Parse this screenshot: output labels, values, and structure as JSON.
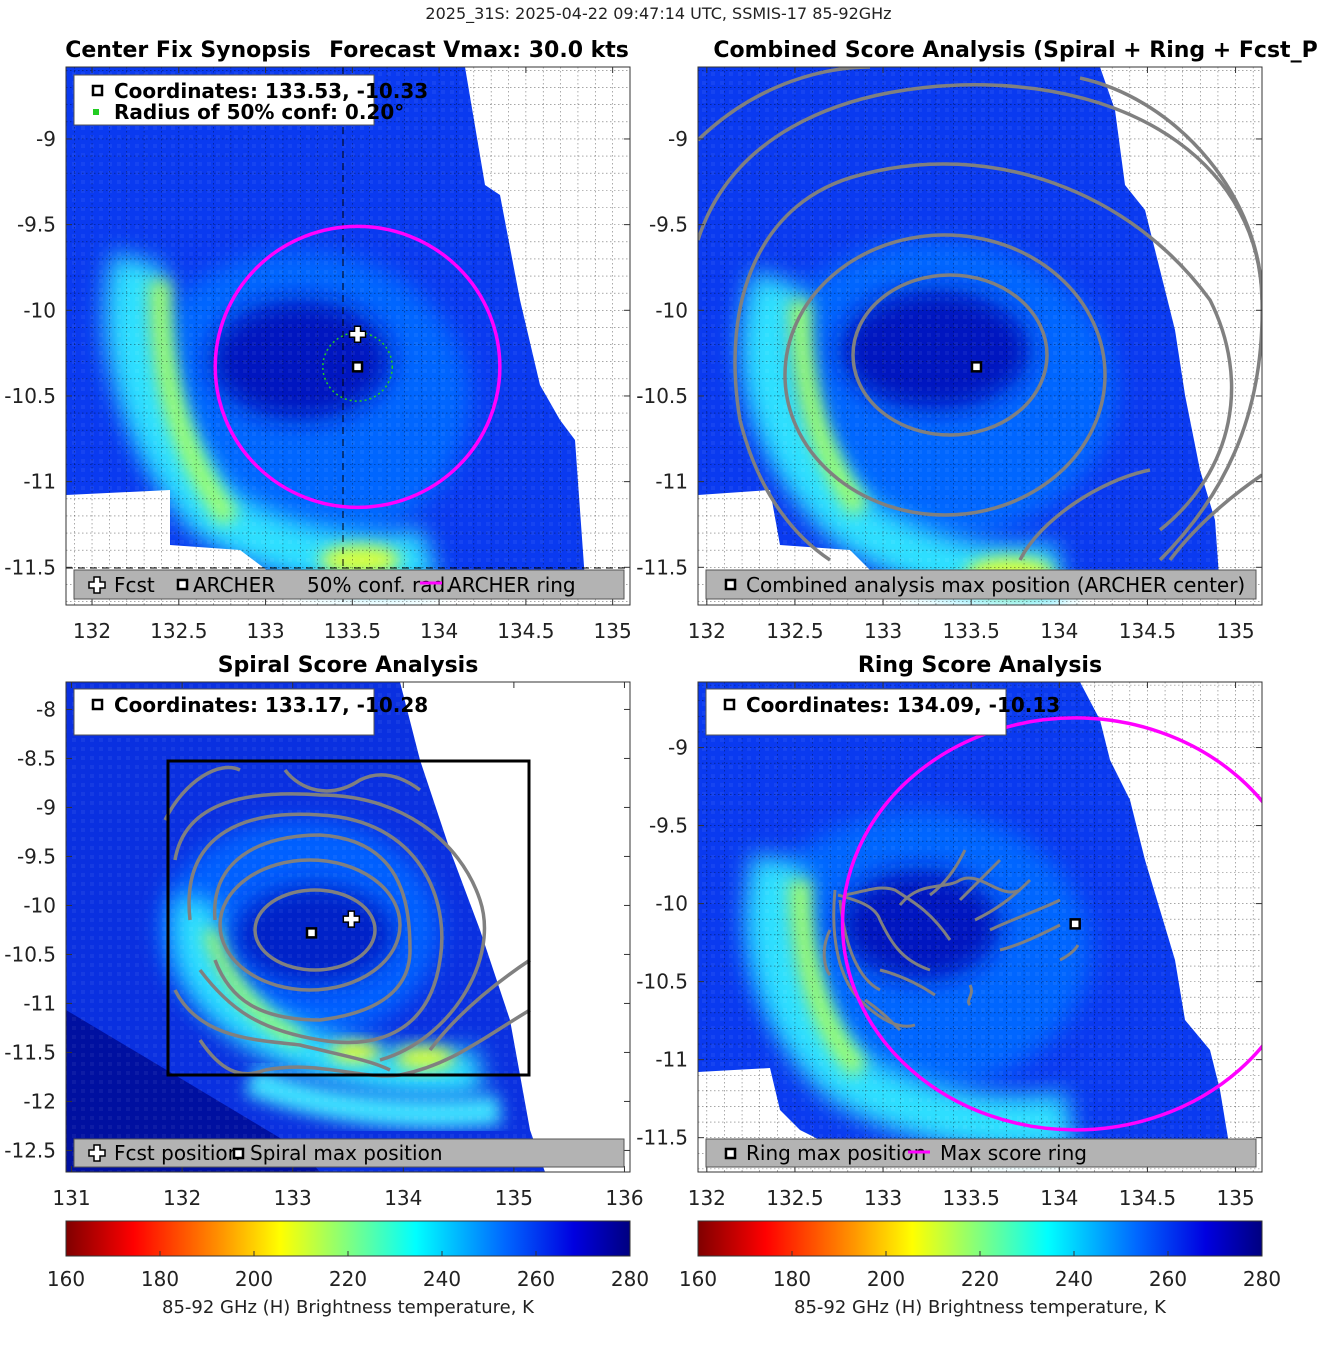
{
  "figure": {
    "suptitle": "2025_31S: 2025-04-22 09:47:14 UTC, SSMIS-17 85-92GHz"
  },
  "colors": {
    "fcst": "#ffffff",
    "archer": "#000000",
    "ring": "#ff00ff",
    "conf": "#22cc22",
    "contour": "#808080",
    "legend_bg": "#b3b3b3"
  },
  "chart_data": [
    {
      "id": "synopsis",
      "type": "heatmap",
      "title_left": "Center Fix Synopsis",
      "title_right": "Forecast Vmax: 30.0 kts",
      "xlim": [
        131.85,
        135.1
      ],
      "ylim": [
        -11.72,
        -8.58
      ],
      "xticks": [
        132,
        132.5,
        133,
        133.5,
        134,
        134.5,
        135
      ],
      "xtick_labels": [
        "132",
        "132.5",
        "133",
        "133.5",
        "134",
        "134.5",
        "135"
      ],
      "yticks": [
        -9,
        -9.5,
        -10,
        -10.5,
        -11,
        -11.5
      ],
      "ytick_labels": [
        "-9",
        "-9.5",
        "-10",
        "-10.5",
        "-11",
        "-11.5"
      ],
      "grid": "dotted",
      "info_lines": [
        "Coordinates: 133.53, -10.33",
        "Radius of 50% conf: 0.20°"
      ],
      "points": [
        {
          "name": "Fcst",
          "x": 133.53,
          "y": -10.14,
          "marker": "cross"
        },
        {
          "name": "ARCHER",
          "x": 133.53,
          "y": -10.33,
          "marker": "square"
        }
      ],
      "conf_circle": {
        "center": [
          133.53,
          -10.33
        ],
        "radius_deg": 0.2
      },
      "ring_circle": {
        "center": [
          133.53,
          -10.33
        ],
        "radius_deg": 0.82
      },
      "legend": [
        "Fcst",
        "ARCHER",
        "50% conf. rad.",
        "ARCHER ring"
      ]
    },
    {
      "id": "combined",
      "type": "heatmap",
      "title": "Combined Score Analysis (Spiral + Ring + Fcst_Pe",
      "xlim": [
        131.95,
        135.15
      ],
      "ylim": [
        -11.72,
        -8.58
      ],
      "xticks": [
        132,
        132.5,
        133,
        133.5,
        134,
        134.5,
        135
      ],
      "xtick_labels": [
        "132",
        "132.5",
        "133",
        "133.5",
        "134",
        "134.5",
        "135"
      ],
      "yticks": [
        -9,
        -9.5,
        -10,
        -10.5,
        -11,
        -11.5
      ],
      "ytick_labels": [
        "-9",
        "-9.5",
        "-10",
        "-10.5",
        "-11",
        "-11.5"
      ],
      "grid": "dotted",
      "points": [
        {
          "name": "Combined analysis max position",
          "x": 133.53,
          "y": -10.33,
          "marker": "square"
        }
      ],
      "legend": [
        "Combined analysis max position (ARCHER center)"
      ]
    },
    {
      "id": "spiral",
      "type": "heatmap",
      "title": "Spiral Score Analysis",
      "xlim": [
        130.95,
        136.05
      ],
      "ylim": [
        -12.72,
        -7.72
      ],
      "xticks": [
        131,
        132,
        133,
        134,
        135,
        136
      ],
      "xtick_labels": [
        "131",
        "132",
        "133",
        "134",
        "135",
        "136"
      ],
      "yticks": [
        -8,
        -8.5,
        -9,
        -9.5,
        -10,
        -10.5,
        -11,
        -11.5,
        -12,
        -12.5
      ],
      "ytick_labels": [
        "-8",
        "-8.5",
        "-9",
        "-9.5",
        "-10",
        "-10.5",
        "-11",
        "-11.5",
        "-12",
        "-12.5"
      ],
      "grid": "none",
      "info_lines": [
        "Coordinates: 133.17, -10.28"
      ],
      "points": [
        {
          "name": "Fcst position",
          "x": 133.53,
          "y": -10.14,
          "marker": "cross"
        },
        {
          "name": "Spiral max position",
          "x": 133.17,
          "y": -10.28,
          "marker": "square"
        }
      ],
      "search_box": {
        "x": [
          131.9,
          135.2
        ],
        "y": [
          -11.72,
          -8.52
        ]
      },
      "legend": [
        "Fcst position",
        "Spiral max position"
      ]
    },
    {
      "id": "ring",
      "type": "heatmap",
      "title": "Ring Score Analysis",
      "xlim": [
        131.95,
        135.15
      ],
      "ylim": [
        -11.72,
        -8.58
      ],
      "xticks": [
        132,
        132.5,
        133,
        133.5,
        134,
        134.5,
        135
      ],
      "xtick_labels": [
        "132",
        "132.5",
        "133",
        "133.5",
        "134",
        "134.5",
        "135"
      ],
      "yticks": [
        -9,
        -9.5,
        -10,
        -10.5,
        -11,
        -11.5
      ],
      "ytick_labels": [
        "-9",
        "-9.5",
        "-10",
        "-10.5",
        "-11",
        "-11.5"
      ],
      "grid": "dotted",
      "info_lines": [
        "Coordinates: 134.09, -10.13"
      ],
      "points": [
        {
          "name": "Ring max position",
          "x": 134.09,
          "y": -10.13,
          "marker": "square"
        }
      ],
      "ring_circle": {
        "center": [
          134.09,
          -10.13
        ],
        "radius_deg": 1.32
      },
      "legend": [
        "Ring max position",
        "Max score ring"
      ]
    },
    {
      "id": "colorbar_left",
      "type": "colorbar",
      "range": [
        160,
        280
      ],
      "ticks": [
        160,
        180,
        200,
        220,
        240,
        260,
        280
      ],
      "tick_labels": [
        "160",
        "180",
        "200",
        "220",
        "240",
        "260",
        "280"
      ],
      "label": "85-92 GHz (H) Brightness temperature, K",
      "colormap": "jet reversed: red at 160 K, yellow near 205 K, cyan near 238 K, dark blue at 280 K"
    },
    {
      "id": "colorbar_right",
      "type": "colorbar",
      "range": [
        160,
        280
      ],
      "ticks": [
        160,
        180,
        200,
        220,
        240,
        260,
        280
      ],
      "tick_labels": [
        "160",
        "180",
        "200",
        "220",
        "240",
        "260",
        "280"
      ],
      "label": "85-92 GHz (H) Brightness temperature, K"
    }
  ]
}
